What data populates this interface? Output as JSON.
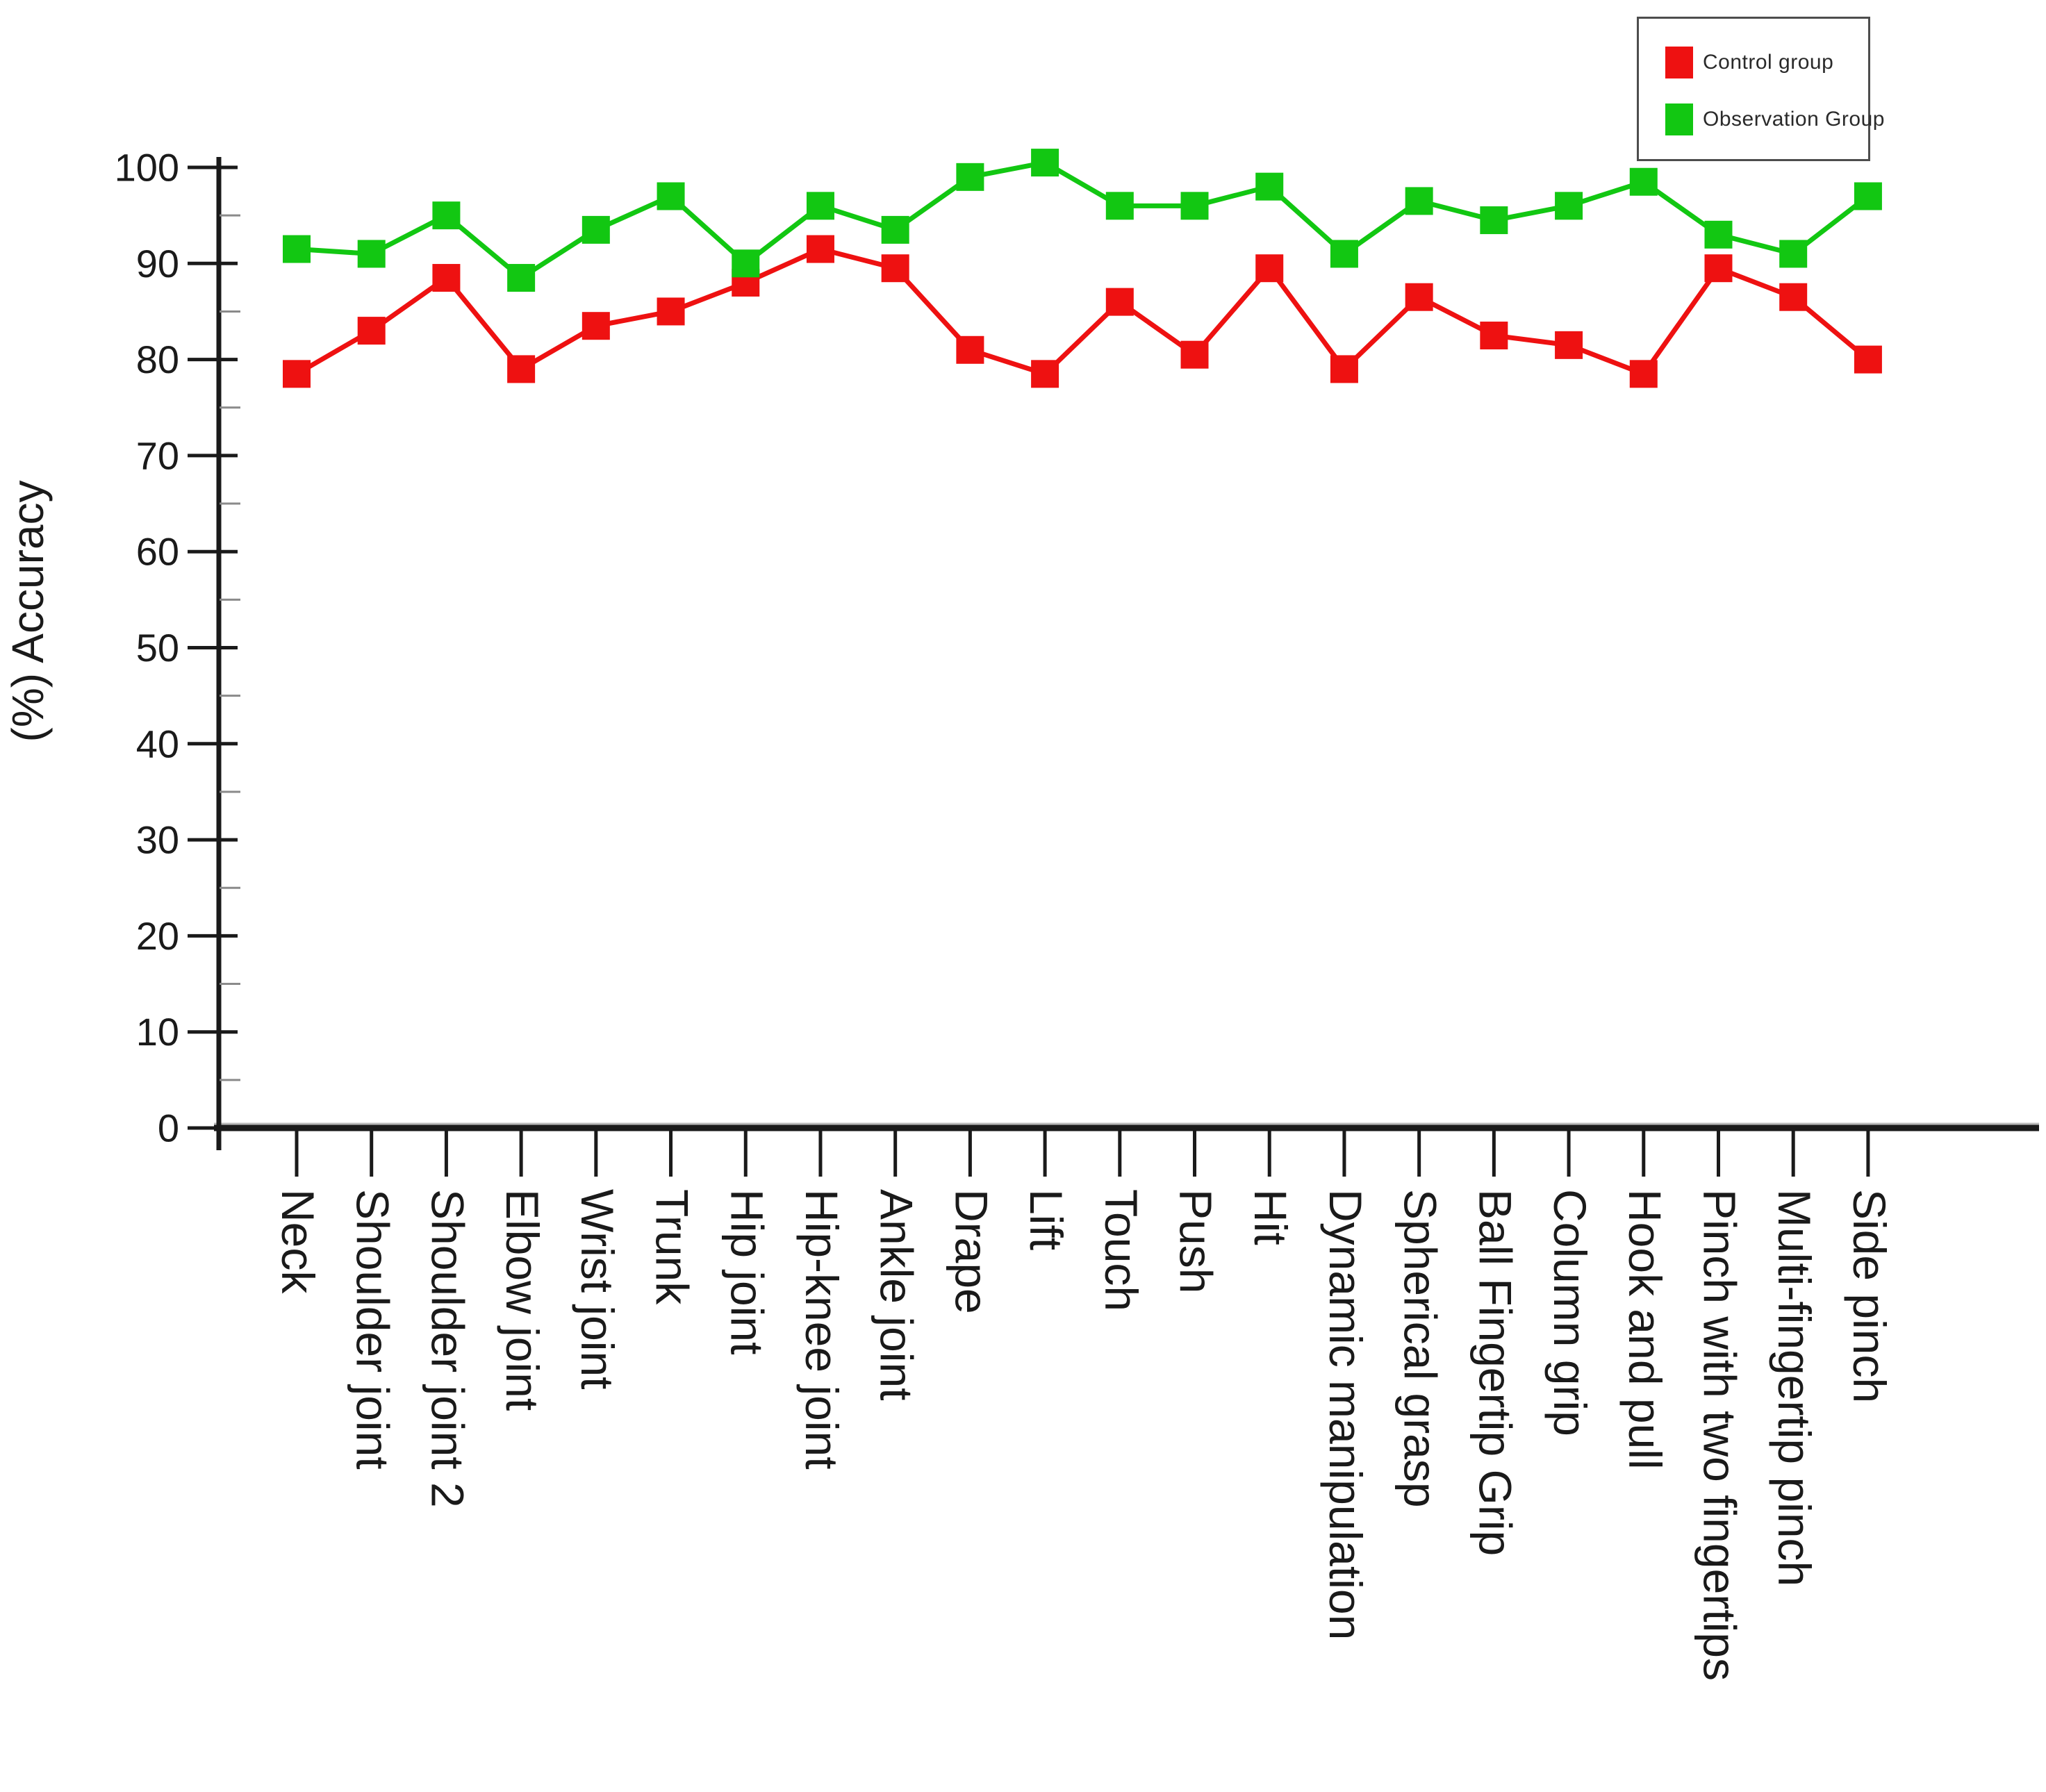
{
  "figure": {
    "background": "#ffffff",
    "axis_color": "#1a1a1a",
    "minor_tick_color": "#8a8a8a"
  },
  "legend": {
    "position": "top-right",
    "items": [
      {
        "label": "Control group",
        "color": "#ee1111"
      },
      {
        "label": "Observation Group",
        "color": "#12c712"
      }
    ]
  },
  "chart_data": {
    "type": "line",
    "title": "",
    "xlabel": "",
    "ylabel": "(%) Accuracy",
    "ylim": [
      0,
      100
    ],
    "ytick_interval": 10,
    "ytick_minor_interval": 5,
    "grid": false,
    "legend_position": "top-right",
    "marker": "square",
    "categories": [
      "Neck",
      "Shoulder joint",
      "Shoulder joint 2",
      "Elbow joint",
      "Wrist joint",
      "Trunk",
      "Hip joint",
      "Hip-knee joint",
      "Ankle joint",
      "Drape",
      "Lift",
      "Touch",
      "Push",
      "Hit",
      "Dynamic manipulation",
      "Spherical grasp",
      "Ball Fingertip Grip",
      "Column grip",
      "Hook and pull",
      "Pinch with two fingertips",
      "Multi-fingertip pinch",
      "Side pinch"
    ],
    "series": [
      {
        "name": "Control group",
        "color": "#ee1111",
        "values": [
          78.5,
          83,
          88.5,
          79,
          83.5,
          85,
          88,
          91.5,
          89.5,
          81,
          78.5,
          86,
          80.5,
          89.5,
          79,
          86.5,
          82.5,
          81.5,
          78.5,
          89.5,
          86.5,
          80
        ]
      },
      {
        "name": "Observation Group",
        "color": "#12c712",
        "values": [
          91.5,
          91,
          95,
          88.5,
          93.5,
          97,
          90,
          96,
          93.5,
          99,
          100.5,
          96,
          96,
          98,
          91,
          96.5,
          94.5,
          96,
          98.5,
          93,
          91,
          97
        ]
      }
    ]
  }
}
